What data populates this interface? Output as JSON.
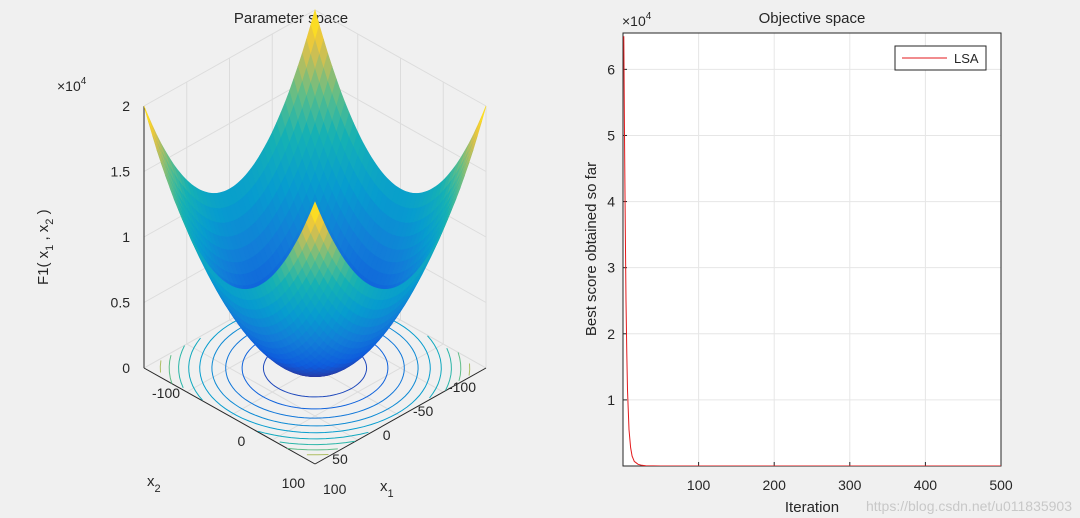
{
  "chart_data": [
    {
      "type": "surface",
      "title": "Parameter space",
      "zlabel": {
        "main": "F1( x",
        "sub1": "1",
        "mid": " , x",
        "sub2": "2",
        "end": " )"
      },
      "x1label": {
        "main": "x",
        "sub": "1"
      },
      "x2label": {
        "main": "x",
        "sub": "2"
      },
      "z_exponent": {
        "base": "×10",
        "exp": "4"
      },
      "z_ticks": [
        "0",
        "0.5",
        "1",
        "1.5",
        "2"
      ],
      "z_tick_values": [
        0,
        5000,
        10000,
        15000,
        20000
      ],
      "x1_ticks": [
        "-100",
        "0",
        "100"
      ],
      "x2_ticks": [
        "100",
        "50",
        "0",
        "-50",
        "-100"
      ],
      "xlim": [
        -100,
        100
      ],
      "ylim": [
        -100,
        100
      ],
      "zlim": [
        0,
        20000
      ],
      "function": "x1^2 + x2^2",
      "contour_levels": 10,
      "colormap": "parula"
    },
    {
      "type": "line",
      "title": "Objective space",
      "xlabel": "Iteration",
      "ylabel": "Best score obtained so far",
      "y_exponent": {
        "base": "×10",
        "exp": "4"
      },
      "xlim": [
        0,
        500
      ],
      "ylim": [
        0,
        65500
      ],
      "x_ticks": [
        "100",
        "200",
        "300",
        "400",
        "500"
      ],
      "x_tick_values": [
        100,
        200,
        300,
        400,
        500
      ],
      "y_ticks": [
        "1",
        "2",
        "3",
        "4",
        "5",
        "6"
      ],
      "y_tick_values": [
        10000,
        20000,
        30000,
        40000,
        50000,
        60000
      ],
      "grid": true,
      "legend_position": "top-right",
      "series": [
        {
          "name": "LSA",
          "color": "#e31a1c",
          "x": [
            1,
            2,
            3,
            4,
            5,
            6,
            8,
            10,
            12,
            15,
            20,
            25,
            30,
            40,
            50,
            75,
            100,
            200,
            300,
            400,
            500
          ],
          "values": [
            65000,
            50000,
            36000,
            25000,
            17000,
            11500,
            5500,
            2800,
            1500,
            700,
            250,
            100,
            45,
            15,
            6,
            2,
            1,
            0.5,
            0.2,
            0.1,
            0.05
          ]
        }
      ]
    }
  ],
  "watermark": "https://blog.csdn.net/u011835903"
}
